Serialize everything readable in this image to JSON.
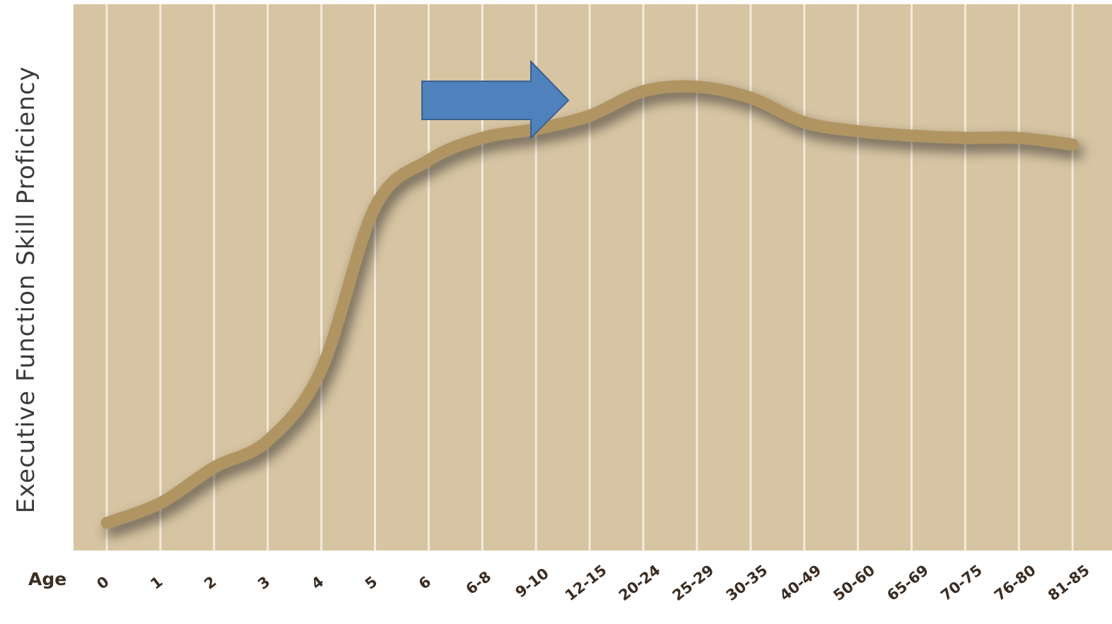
{
  "chart_data": {
    "type": "line",
    "title": "",
    "xlabel": "Age",
    "ylabel": "Executive Function Skill Proficiency",
    "categories": [
      "0",
      "1",
      "2",
      "3",
      "4",
      "5",
      "6",
      "6-8",
      "9-10",
      "12-15",
      "20-24",
      "25-29",
      "30-35",
      "40-49",
      "50-60",
      "65-69",
      "70-75",
      "76-80",
      "81-85"
    ],
    "series": [
      {
        "values": [
          0.0,
          4.5,
          12.5,
          18.5,
          34.5,
          71.0,
          81.5,
          86.5,
          88.5,
          91.5,
          97.0,
          98.0,
          95.5,
          90.0,
          88.0,
          87.0,
          86.5,
          86.5,
          85.0
        ]
      }
    ],
    "ylim": [
      0,
      100
    ],
    "grid": true,
    "legend": "none",
    "annotations": [
      {
        "type": "arrow",
        "points_to_category": "12-15",
        "description": "blue right-pointing arrow"
      }
    ],
    "colors": {
      "plot_background": "#D6C4A2",
      "gridline": "#F3EBDD",
      "line": "#B09562",
      "arrow_fill": "#4F81BD",
      "arrow_stroke": "#3A6190"
    }
  }
}
